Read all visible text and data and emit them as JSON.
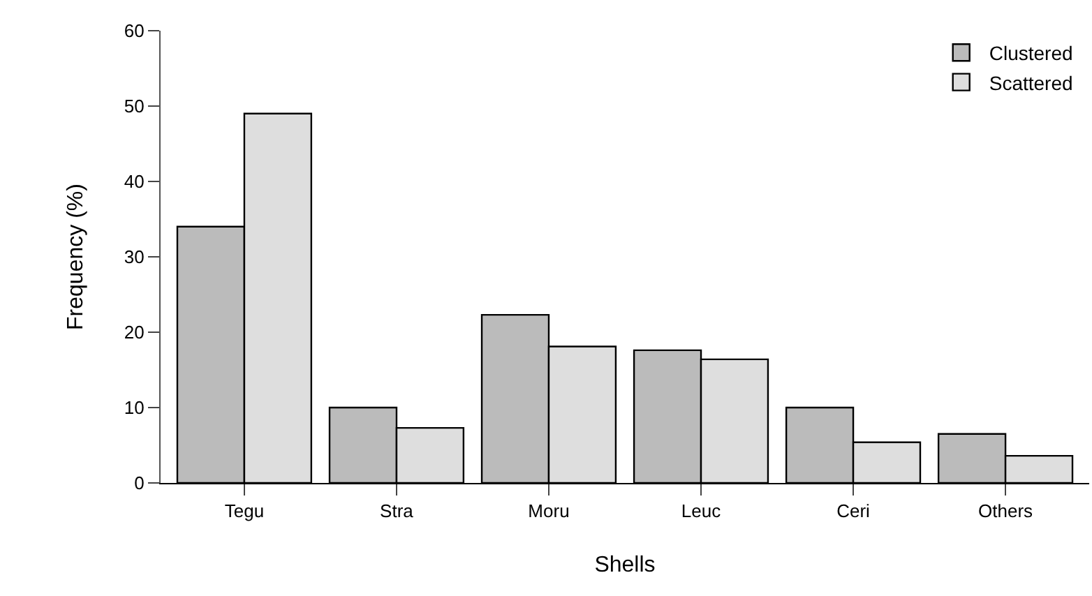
{
  "chart_data": {
    "type": "bar",
    "xlabel": "Shells",
    "ylabel": "Frequency (%)",
    "categories": [
      "Tegu",
      "Stra",
      "Moru",
      "Leuc",
      "Ceri",
      "Others"
    ],
    "series": [
      {
        "name": "Clustered",
        "color": "#bbbbbb",
        "values": [
          34.0,
          10.0,
          22.3,
          17.6,
          10.0,
          6.5
        ]
      },
      {
        "name": "Scattered",
        "color": "#dedede",
        "values": [
          49.0,
          7.3,
          18.1,
          16.4,
          5.4,
          3.6
        ]
      }
    ],
    "ylim": [
      0,
      60
    ],
    "yticks": [
      0,
      10,
      20,
      30,
      40,
      50,
      60
    ],
    "legend": "top right"
  }
}
